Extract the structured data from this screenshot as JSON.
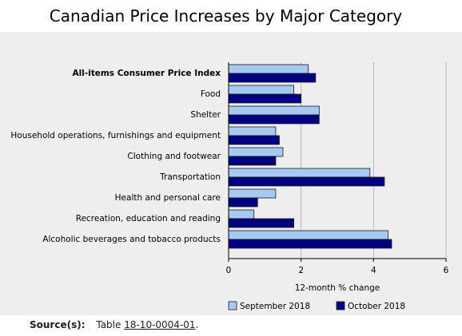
{
  "title": "Canadian Price Increases by Major Category",
  "source": {
    "label": "Source(s):",
    "prefix": "Table",
    "link": "18-10-0004-01",
    "suffix": "."
  },
  "colors": {
    "september": "#a6c9f2",
    "october": "#000080",
    "panel": "#eeeeee"
  },
  "chart_data": {
    "type": "bar",
    "orientation": "horizontal",
    "title": "Canadian Price Increases by Major Category",
    "xlabel": "12-month % change",
    "ylabel": "",
    "xlim": [
      0,
      6
    ],
    "xticks": [
      0,
      2,
      4,
      6
    ],
    "grid": true,
    "legend_position": "bottom",
    "categories": [
      "All-items Consumer Price Index",
      "Food",
      "Shelter",
      "Household operations, furnishings and equipment",
      "Clothing and footwear",
      "Transportation",
      "Health and personal care",
      "Recreation, education and reading",
      "Alcoholic beverages and tobacco products"
    ],
    "bold_categories": [
      "All-items Consumer Price Index"
    ],
    "series": [
      {
        "name": "September 2018",
        "values": [
          2.2,
          1.8,
          2.5,
          1.3,
          1.5,
          3.9,
          1.3,
          0.7,
          4.4
        ]
      },
      {
        "name": "October 2018",
        "values": [
          2.4,
          2.0,
          2.5,
          1.4,
          1.3,
          4.3,
          0.8,
          1.8,
          4.5
        ]
      }
    ]
  }
}
